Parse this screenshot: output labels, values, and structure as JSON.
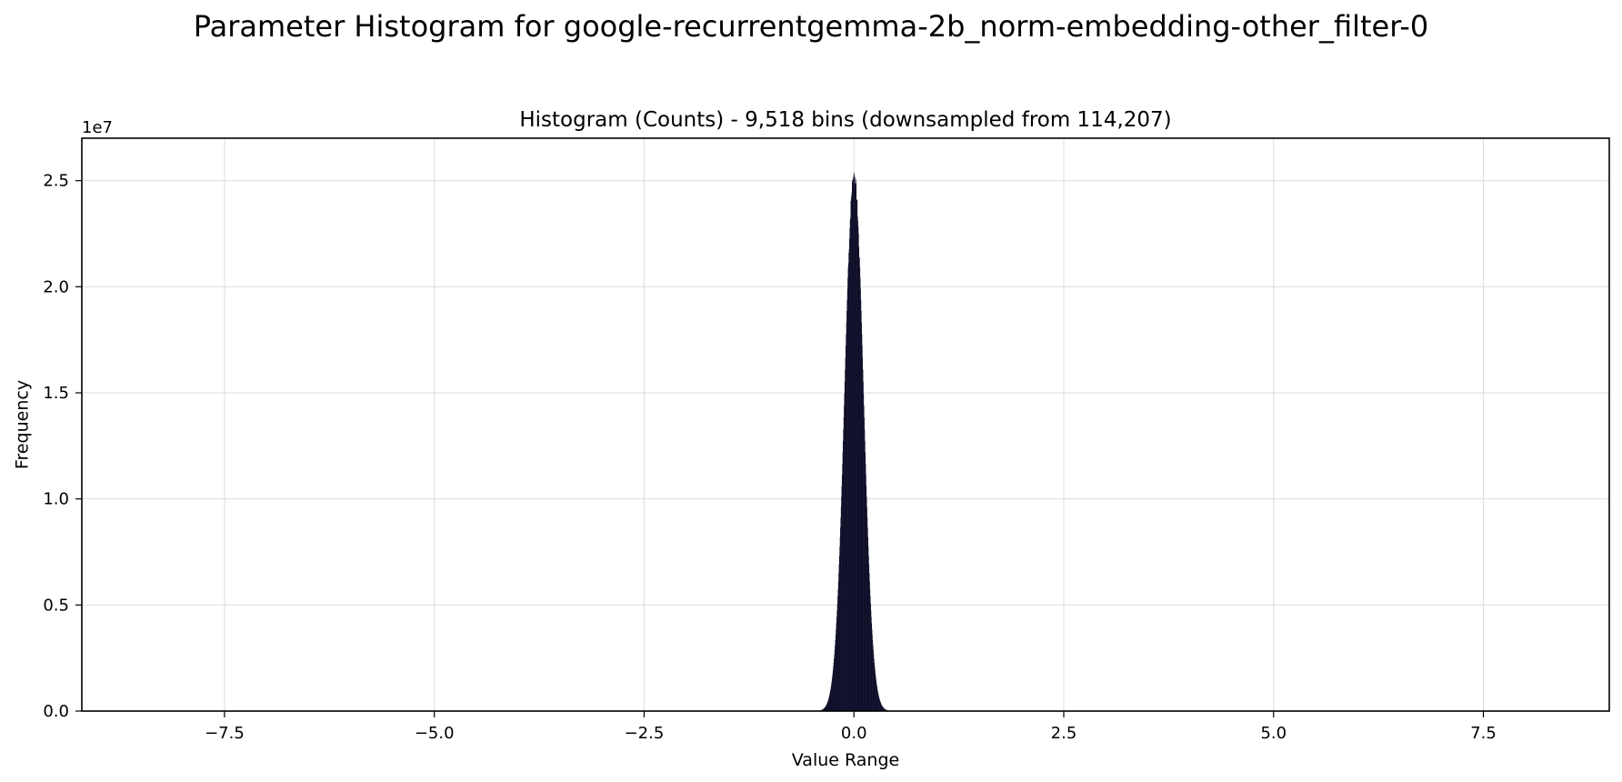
{
  "figure_title": "Parameter Histogram for google-recurrentgemma-2b_norm-embedding-other_filter-0",
  "colors": {
    "bar_fill": "#0b0b26",
    "grid": "#dddddd",
    "axes": "#000000",
    "background": "#ffffff"
  },
  "chart_data": {
    "type": "histogram",
    "title": "Histogram (Counts) - 9,518 bins (downsampled from 114,207)",
    "xlabel": "Value Range",
    "ylabel": "Frequency",
    "y_offset_label": "1e7",
    "xlim": [
      -9.2,
      9.0
    ],
    "ylim": [
      0,
      27000000
    ],
    "grid": true,
    "x_ticks": [
      -7.5,
      -5.0,
      -2.5,
      0.0,
      2.5,
      5.0,
      7.5
    ],
    "x_tick_labels": [
      "−7.5",
      "−5.0",
      "−2.5",
      "0.0",
      "2.5",
      "5.0",
      "7.5"
    ],
    "y_ticks": [
      0,
      5000000,
      10000000,
      15000000,
      20000000,
      25000000
    ],
    "y_tick_labels": [
      "0.0",
      "0.5",
      "1.0",
      "1.5",
      "2.0",
      "2.5"
    ],
    "peak_center": 0.0,
    "peak_count": 25600000,
    "distribution_std": 0.11,
    "data_range": [
      -9.2,
      9.0
    ]
  }
}
